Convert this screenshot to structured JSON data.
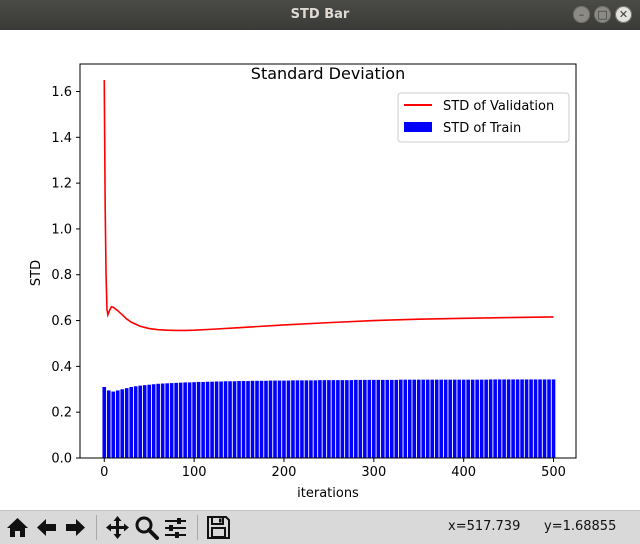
{
  "window": {
    "title": "STD Bar"
  },
  "window_buttons": {
    "minimize": "–",
    "maximize": "□",
    "close": "✕"
  },
  "toolbar": {
    "buttons": [
      "home-icon",
      "back-icon",
      "forward-icon",
      "pan-icon",
      "zoom-icon",
      "configure-subplots-icon",
      "save-icon"
    ],
    "x_readout": "x=517.739",
    "y_readout": "y=1.68855"
  },
  "colors": {
    "validation": "#ff0000",
    "train": "#0000ff"
  },
  "chart_data": {
    "type": "bar",
    "title": "Standard Deviation",
    "xlabel": "iterations",
    "ylabel": "STD",
    "xlim": [
      -27,
      525
    ],
    "ylim": [
      0.0,
      1.72
    ],
    "xticks": [
      0,
      100,
      200,
      300,
      400,
      500
    ],
    "yticks": [
      0.0,
      0.2,
      0.4,
      0.6,
      0.8,
      1.0,
      1.2,
      1.4,
      1.6
    ],
    "ytick_labels": [
      "0.0",
      "0.2",
      "0.4",
      "0.6",
      "0.8",
      "1.0",
      "1.2",
      "1.4",
      "1.6"
    ],
    "legend_position": "top-right",
    "series": [
      {
        "name": "STD of Validation",
        "kind": "line",
        "x": [
          0,
          1,
          2,
          3,
          4,
          6,
          8,
          10,
          12,
          15,
          20,
          25,
          30,
          40,
          50,
          60,
          70,
          80,
          90,
          100,
          120,
          150,
          200,
          250,
          300,
          350,
          400,
          450,
          500
        ],
        "values": [
          1.65,
          1.1,
          0.8,
          0.65,
          0.625,
          0.645,
          0.66,
          0.658,
          0.652,
          0.643,
          0.625,
          0.607,
          0.593,
          0.575,
          0.565,
          0.56,
          0.558,
          0.557,
          0.557,
          0.558,
          0.562,
          0.569,
          0.581,
          0.591,
          0.6,
          0.606,
          0.61,
          0.613,
          0.616
        ]
      },
      {
        "name": "STD of Train",
        "kind": "bar",
        "x": [
          0,
          5,
          10,
          15,
          20,
          25,
          30,
          35,
          40,
          45,
          50,
          55,
          60,
          65,
          70,
          75,
          80,
          85,
          90,
          95,
          100,
          105,
          110,
          115,
          120,
          125,
          130,
          135,
          140,
          145,
          150,
          155,
          160,
          165,
          170,
          175,
          180,
          185,
          190,
          195,
          200,
          205,
          210,
          215,
          220,
          225,
          230,
          235,
          240,
          245,
          250,
          255,
          260,
          265,
          270,
          275,
          280,
          285,
          290,
          295,
          300,
          305,
          310,
          315,
          320,
          325,
          330,
          335,
          340,
          345,
          350,
          355,
          360,
          365,
          370,
          375,
          380,
          385,
          390,
          395,
          400,
          405,
          410,
          415,
          420,
          425,
          430,
          435,
          440,
          445,
          450,
          455,
          460,
          465,
          470,
          475,
          480,
          485,
          490,
          495,
          500
        ],
        "values": [
          0.31,
          0.295,
          0.29,
          0.295,
          0.3,
          0.305,
          0.31,
          0.313,
          0.316,
          0.318,
          0.32,
          0.322,
          0.324,
          0.325,
          0.326,
          0.327,
          0.328,
          0.329,
          0.33,
          0.33,
          0.331,
          0.332,
          0.332,
          0.333,
          0.333,
          0.334,
          0.334,
          0.335,
          0.335,
          0.335,
          0.336,
          0.336,
          0.336,
          0.337,
          0.337,
          0.337,
          0.337,
          0.338,
          0.338,
          0.338,
          0.338,
          0.338,
          0.339,
          0.339,
          0.339,
          0.339,
          0.339,
          0.339,
          0.34,
          0.34,
          0.34,
          0.34,
          0.34,
          0.34,
          0.34,
          0.34,
          0.341,
          0.341,
          0.341,
          0.341,
          0.341,
          0.341,
          0.341,
          0.341,
          0.341,
          0.341,
          0.342,
          0.342,
          0.342,
          0.342,
          0.342,
          0.342,
          0.342,
          0.342,
          0.342,
          0.342,
          0.342,
          0.342,
          0.342,
          0.342,
          0.342,
          0.342,
          0.342,
          0.342,
          0.342,
          0.342,
          0.343,
          0.343,
          0.343,
          0.343,
          0.343,
          0.343,
          0.343,
          0.343,
          0.343,
          0.343,
          0.343,
          0.343,
          0.343,
          0.343,
          0.343
        ]
      }
    ]
  }
}
